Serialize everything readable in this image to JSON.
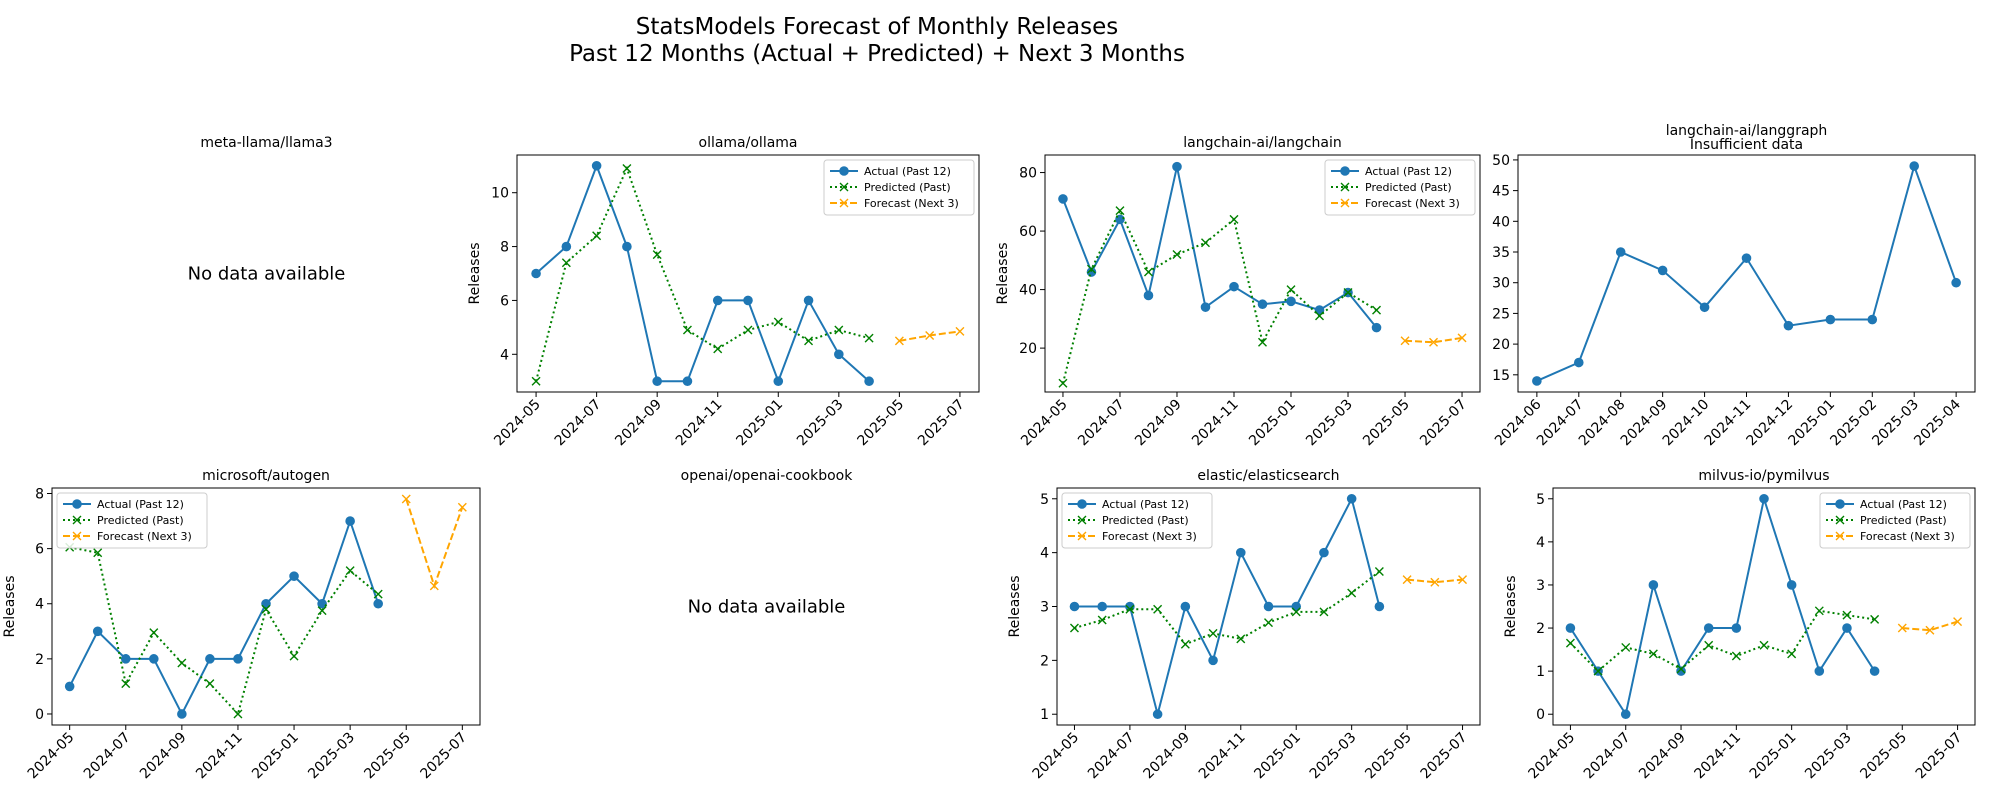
{
  "figure": {
    "title_line1": "StatsModels Forecast of Monthly Releases",
    "title_line2": "Past 12 Months (Actual + Predicted) + Next 3 Months"
  },
  "colors": {
    "actual": "#1f77b4",
    "predicted": "#008000",
    "forecast": "#ffa500"
  },
  "legend_labels": {
    "actual": "Actual (Past 12)",
    "predicted": "Predicted (Past)",
    "forecast": "Forecast (Next 3)"
  },
  "no_data_text": "No data available",
  "chart_data": [
    {
      "type": "line",
      "title": "meta-llama/llama3",
      "no_data": true
    },
    {
      "type": "line",
      "title": "ollama/ollama",
      "ylabel": "Releases",
      "ylim": [
        2.6,
        11.4
      ],
      "yticks": [
        4,
        6,
        8,
        10
      ],
      "legend": "top-right",
      "months": [
        "2024-05",
        "2024-06",
        "2024-07",
        "2024-08",
        "2024-09",
        "2024-10",
        "2024-11",
        "2024-12",
        "2025-01",
        "2025-02",
        "2025-03",
        "2025-04"
      ],
      "actual": [
        7,
        8,
        11,
        8,
        3,
        3,
        6,
        6,
        3,
        6,
        4,
        3
      ],
      "predicted": [
        3.0,
        7.4,
        8.4,
        10.9,
        7.7,
        4.9,
        4.2,
        4.9,
        5.2,
        4.5,
        4.9,
        4.6
      ],
      "forecast_months": [
        "2025-05",
        "2025-06",
        "2025-07"
      ],
      "forecast": [
        4.5,
        4.7,
        4.85
      ],
      "xticks": [
        "2024-05",
        "2024-07",
        "2024-09",
        "2024-11",
        "2025-01",
        "2025-03",
        "2025-05",
        "2025-07"
      ]
    },
    {
      "type": "line",
      "title": "langchain-ai/langchain",
      "ylabel": "Releases",
      "ylim": [
        5,
        86
      ],
      "yticks": [
        20,
        40,
        60,
        80
      ],
      "legend": "top-right",
      "months": [
        "2024-05",
        "2024-06",
        "2024-07",
        "2024-08",
        "2024-09",
        "2024-10",
        "2024-11",
        "2024-12",
        "2025-01",
        "2025-02",
        "2025-03",
        "2025-04"
      ],
      "actual": [
        71,
        46,
        64,
        38,
        82,
        34,
        41,
        35,
        36,
        33,
        39,
        27
      ],
      "predicted": [
        8,
        47,
        67,
        46,
        52,
        56,
        64,
        22,
        40,
        31,
        39,
        33
      ],
      "forecast_months": [
        "2025-05",
        "2025-06",
        "2025-07"
      ],
      "forecast": [
        22.5,
        22,
        23.5
      ],
      "xticks": [
        "2024-05",
        "2024-07",
        "2024-09",
        "2024-11",
        "2025-01",
        "2025-03",
        "2025-05",
        "2025-07"
      ]
    },
    {
      "type": "line",
      "title": "langchain-ai/langgraph",
      "title2": "Insufficient data",
      "ylim": [
        12.2,
        50.8
      ],
      "yticks": [
        15,
        20,
        25,
        30,
        35,
        40,
        45,
        50
      ],
      "legend": "none",
      "months": [
        "2024-06",
        "2024-07",
        "2024-08",
        "2024-09",
        "2024-10",
        "2024-11",
        "2024-12",
        "2025-01",
        "2025-02",
        "2025-03",
        "2025-04"
      ],
      "actual": [
        14,
        17,
        35,
        32,
        26,
        34,
        23,
        24,
        24,
        49,
        30
      ],
      "xticks": [
        "2024-06",
        "2024-07",
        "2024-08",
        "2024-09",
        "2024-10",
        "2024-11",
        "2024-12",
        "2025-01",
        "2025-02",
        "2025-03",
        "2025-04"
      ]
    },
    {
      "type": "line",
      "title": "microsoft/autogen",
      "ylabel": "Releases",
      "ylim": [
        -0.4,
        8.2
      ],
      "yticks": [
        0,
        2,
        4,
        6,
        8
      ],
      "legend": "top-left",
      "months": [
        "2024-05",
        "2024-06",
        "2024-07",
        "2024-08",
        "2024-09",
        "2024-10",
        "2024-11",
        "2024-12",
        "2025-01",
        "2025-02",
        "2025-03",
        "2025-04"
      ],
      "actual": [
        1,
        3,
        2,
        2,
        0,
        2,
        2,
        4,
        5,
        4,
        7,
        4
      ],
      "predicted": [
        6.05,
        5.85,
        1.1,
        2.95,
        1.85,
        1.1,
        0.0,
        3.8,
        2.1,
        3.75,
        5.2,
        4.35
      ],
      "forecast_months": [
        "2025-05",
        "2025-06",
        "2025-07"
      ],
      "forecast": [
        7.8,
        4.65,
        7.5
      ],
      "xticks": [
        "2024-05",
        "2024-07",
        "2024-09",
        "2024-11",
        "2025-01",
        "2025-03",
        "2025-05",
        "2025-07"
      ]
    },
    {
      "type": "line",
      "title": "openai/openai-cookbook",
      "no_data": true
    },
    {
      "type": "line",
      "title": "elastic/elasticsearch",
      "ylabel": "Releases",
      "ylim": [
        0.8,
        5.2
      ],
      "yticks": [
        1,
        2,
        3,
        4,
        5
      ],
      "legend": "top-left",
      "months": [
        "2024-05",
        "2024-06",
        "2024-07",
        "2024-08",
        "2024-09",
        "2024-10",
        "2024-11",
        "2024-12",
        "2025-01",
        "2025-02",
        "2025-03",
        "2025-04"
      ],
      "actual": [
        3,
        3,
        3,
        1,
        3,
        2,
        4,
        3,
        3,
        4,
        5,
        3
      ],
      "predicted": [
        2.6,
        2.75,
        2.95,
        2.95,
        2.3,
        2.5,
        2.4,
        2.7,
        2.9,
        2.9,
        3.25,
        3.65
      ],
      "forecast_months": [
        "2025-05",
        "2025-06",
        "2025-07"
      ],
      "forecast": [
        3.5,
        3.45,
        3.5
      ],
      "xticks": [
        "2024-05",
        "2024-07",
        "2024-09",
        "2024-11",
        "2025-01",
        "2025-03",
        "2025-05",
        "2025-07"
      ]
    },
    {
      "type": "line",
      "title": "milvus-io/pymilvus",
      "ylabel": "Releases",
      "ylim": [
        -0.25,
        5.25
      ],
      "yticks": [
        0,
        1,
        2,
        3,
        4,
        5
      ],
      "legend": "top-right",
      "months": [
        "2024-05",
        "2024-06",
        "2024-07",
        "2024-08",
        "2024-09",
        "2024-10",
        "2024-11",
        "2024-12",
        "2025-01",
        "2025-02",
        "2025-03",
        "2025-04"
      ],
      "actual": [
        2,
        1,
        0,
        3,
        1,
        2,
        2,
        5,
        3,
        1,
        2,
        1
      ],
      "predicted": [
        1.65,
        1.0,
        1.55,
        1.4,
        1.05,
        1.6,
        1.35,
        1.6,
        1.4,
        2.4,
        2.3,
        2.2
      ],
      "forecast_months": [
        "2025-05",
        "2025-06",
        "2025-07"
      ],
      "forecast": [
        2.0,
        1.95,
        2.15
      ],
      "xticks": [
        "2024-05",
        "2024-07",
        "2024-09",
        "2024-11",
        "2025-01",
        "2025-03",
        "2025-05",
        "2025-07"
      ]
    }
  ]
}
